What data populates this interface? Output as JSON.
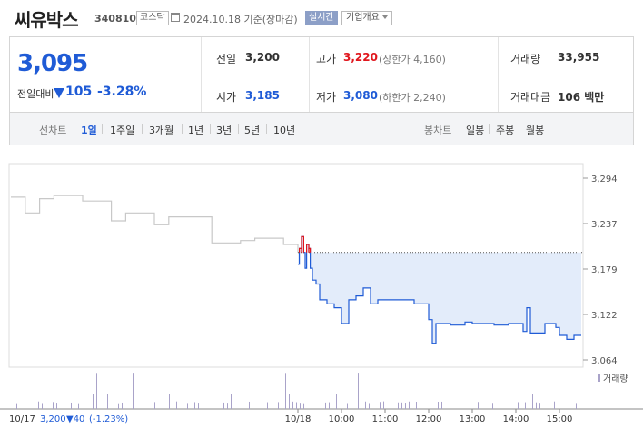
{
  "header": {
    "title": "씨유박스",
    "code": "340810",
    "market": "코스닥",
    "date_text": "2024.10.18  기준(장마감)",
    "realtime": "실시간",
    "overview": "기업개요"
  },
  "quote": {
    "price": "3,095",
    "change_label": "전일대비",
    "change_value": "105",
    "change_pct": "-3.28%",
    "prev_label": "전일",
    "prev": "3,200",
    "open_label": "시가",
    "open": "3,185",
    "high_label": "고가",
    "high": "3,220",
    "upper_limit": "(상한가 4,160)",
    "low_label": "저가",
    "low": "3,080",
    "lower_limit": "(하한가 2,240)",
    "volume_label": "거래량",
    "volume": "33,955",
    "amount_label": "거래대금",
    "amount": "106 백만"
  },
  "period_bar": {
    "line_label": "선차트",
    "line_tabs": [
      "1일",
      "1주일",
      "3개월",
      "1년",
      "3년",
      "5년",
      "10년"
    ],
    "active_tab": "1일",
    "candle_label": "봉차트",
    "candle_tabs": [
      "일봉",
      "주봉",
      "월봉"
    ]
  },
  "colors": {
    "up": "#e0161d",
    "down": "#1f5bd6",
    "prev_series": "#c8c8c8",
    "fill": "#e3ecfa",
    "volume_bar": "#a9a3c9"
  },
  "chart_data": {
    "type": "line",
    "y_ticks": [
      "3,294",
      "3,237",
      "3,179",
      "3,122",
      "3,064"
    ],
    "ylim": [
      3064,
      3294
    ],
    "x_ticks": [
      "10/18",
      "10:00",
      "11:00",
      "12:00",
      "13:00",
      "14:00",
      "15:00"
    ],
    "reference_price": 3200,
    "volume_legend": "거래량",
    "prev_day_caption": {
      "date": "10/17",
      "price": "3,200",
      "change": "▼40",
      "pct": "(-1.23%)"
    },
    "series": [
      {
        "points": [
          [
            "prev",
            3270
          ],
          [
            "prev",
            3250
          ],
          [
            "prev",
            3268
          ],
          [
            "prev",
            3272
          ],
          [
            "prev",
            3272
          ],
          [
            "prev",
            3265
          ],
          [
            "prev",
            3265
          ],
          [
            "prev",
            3240
          ],
          [
            "prev",
            3250
          ],
          [
            "prev",
            3250
          ],
          [
            "prev",
            3235
          ],
          [
            "prev",
            3245
          ],
          [
            "prev",
            3245
          ],
          [
            "prev",
            3245
          ],
          [
            "prev",
            3212
          ],
          [
            "prev",
            3212
          ],
          [
            "prev",
            3215
          ],
          [
            "prev",
            3218
          ],
          [
            "prev",
            3218
          ],
          [
            "prev",
            3210
          ],
          [
            "prev",
            3200
          ]
        ]
      },
      {
        "points": [
          [
            "09:00",
            3185
          ],
          [
            "09:02",
            3205
          ],
          [
            "09:05",
            3220
          ],
          [
            "09:08",
            3200
          ],
          [
            "09:10",
            3180
          ],
          [
            "09:12",
            3210
          ],
          [
            "09:15",
            3205
          ],
          [
            "09:17",
            3180
          ],
          [
            "09:20",
            3165
          ],
          [
            "09:25",
            3160
          ],
          [
            "09:30",
            3140
          ],
          [
            "09:40",
            3135
          ],
          [
            "09:50",
            3130
          ],
          [
            "10:00",
            3110
          ],
          [
            "10:10",
            3140
          ],
          [
            "10:20",
            3145
          ],
          [
            "10:30",
            3155
          ],
          [
            "10:40",
            3135
          ],
          [
            "10:50",
            3140
          ],
          [
            "11:00",
            3140
          ],
          [
            "11:20",
            3140
          ],
          [
            "11:40",
            3135
          ],
          [
            "12:00",
            3115
          ],
          [
            "12:05",
            3085
          ],
          [
            "12:10",
            3110
          ],
          [
            "12:30",
            3108
          ],
          [
            "12:50",
            3112
          ],
          [
            "13:00",
            3110
          ],
          [
            "13:30",
            3108
          ],
          [
            "13:50",
            3110
          ],
          [
            "14:00",
            3110
          ],
          [
            "14:10",
            3100
          ],
          [
            "14:15",
            3130
          ],
          [
            "14:20",
            3098
          ],
          [
            "14:40",
            3110
          ],
          [
            "14:55",
            3105
          ],
          [
            "15:00",
            3095
          ],
          [
            "15:10",
            3090
          ],
          [
            "15:20",
            3095
          ],
          [
            "15:30",
            3095
          ]
        ]
      }
    ]
  }
}
